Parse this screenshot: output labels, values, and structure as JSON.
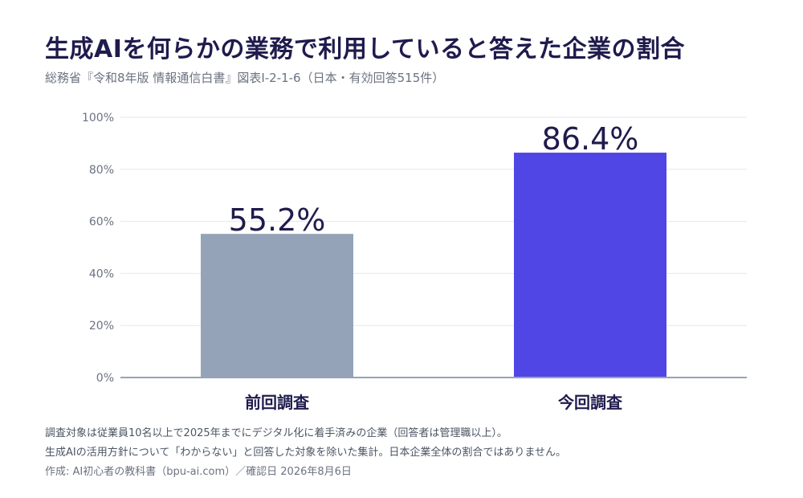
{
  "title": "生成AIを何らかの業務で利用していると答えた企業の割合",
  "subtitle": "総務省『令和8年版 情報通信白書』図表I-2-1-6（日本・有効回答515件）",
  "chart_data": {
    "type": "bar",
    "categories": [
      "前回調査",
      "今回調査"
    ],
    "values": [
      55.2,
      86.4
    ],
    "value_labels": [
      "55.2%",
      "86.4%"
    ],
    "bar_colors": [
      "#94a3b8",
      "#4f46e5"
    ],
    "ylim": [
      0,
      100
    ],
    "yticks": [
      0,
      20,
      40,
      60,
      80,
      100
    ],
    "ytick_labels": [
      "0%",
      "20%",
      "40%",
      "60%",
      "80%",
      "100%"
    ],
    "grid": true
  },
  "notes": [
    "調査対象は従業員10名以上で2025年までにデジタル化に着手済みの企業（回答者は管理職以上）。",
    "生成AIの活用方針について「わからない」と回答した対象を除いた集計。日本企業全体の割合ではありません。"
  ],
  "credit": "作成: AI初心者の教科書（bpu-ai.com）／確認日 2026年8月6日",
  "colors": {
    "title": "#1f1b4d",
    "subtitle": "#6b7280",
    "axis": "#94a3b8",
    "grid": "#e5e7eb"
  }
}
